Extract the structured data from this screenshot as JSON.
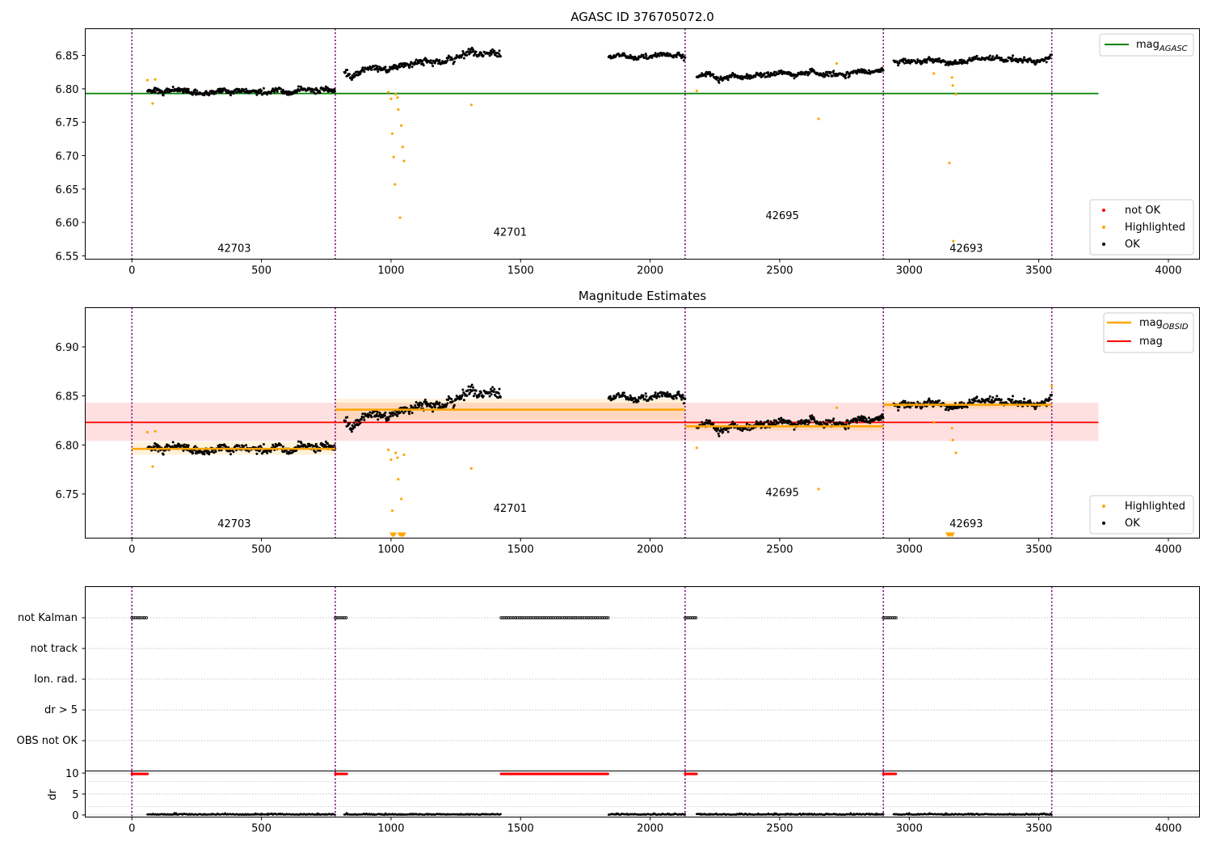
{
  "colors": {
    "ok": "#000000",
    "highlighted": "#ffa500",
    "not_ok": "#ff0000",
    "agasc_line": "#008000",
    "mag_line": "#ff0000",
    "obsid_line": "#ffa500",
    "boundary": "#800080",
    "grid": "#b0b0b0"
  },
  "chart_data": [
    {
      "type": "scatter",
      "title": "AGASC ID 376705072.0",
      "xlim": [
        -180,
        4120
      ],
      "ylim": [
        6.545,
        6.89
      ],
      "xticks": [
        "0",
        "500",
        "1000",
        "1500",
        "2000",
        "2500",
        "3000",
        "3500",
        "4000"
      ],
      "yticks": [
        "6.55",
        "6.60",
        "6.65",
        "6.70",
        "6.75",
        "6.80",
        "6.85"
      ],
      "boundaries": [
        0,
        785,
        2135,
        2900,
        3550
      ],
      "segments": [
        {
          "start": 60,
          "end": 785,
          "level": 6.797,
          "noise": 0.006
        },
        {
          "start": 820,
          "end": 1425,
          "level": 6.822,
          "slope": 0.036,
          "noise": 0.008
        },
        {
          "start": 1840,
          "end": 2135,
          "level": 6.849,
          "noise": 0.005
        },
        {
          "start": 2180,
          "end": 2900,
          "level": 6.816,
          "slope": 0.012,
          "noise": 0.006
        },
        {
          "start": 2940,
          "end": 3550,
          "level": 6.84,
          "slope": 0.005,
          "noise": 0.006
        }
      ],
      "obsid_labels": [
        {
          "text": "42703",
          "x": 395,
          "y": 6.556
        },
        {
          "text": "42701",
          "x": 1460,
          "y": 6.58
        },
        {
          "text": "42695",
          "x": 2510,
          "y": 6.605
        },
        {
          "text": "42693",
          "x": 3220,
          "y": 6.556
        }
      ],
      "agasc_mag": {
        "value": 6.793,
        "xmin": -180,
        "xmax": 3730
      },
      "highlighted": [
        [
          60,
          6.813
        ],
        [
          80,
          6.778
        ],
        [
          90,
          6.814
        ],
        [
          990,
          6.795
        ],
        [
          1000,
          6.785
        ],
        [
          1005,
          6.733
        ],
        [
          1010,
          6.698
        ],
        [
          1015,
          6.657
        ],
        [
          1018,
          6.792
        ],
        [
          1025,
          6.787
        ],
        [
          1028,
          6.769
        ],
        [
          1035,
          6.607
        ],
        [
          1040,
          6.745
        ],
        [
          1045,
          6.713
        ],
        [
          1050,
          6.692
        ],
        [
          1310,
          6.776
        ],
        [
          2180,
          6.797
        ],
        [
          2650,
          6.755
        ],
        [
          2720,
          6.838
        ],
        [
          3095,
          6.823
        ],
        [
          3155,
          6.689
        ],
        [
          3165,
          6.817
        ],
        [
          3168,
          6.805
        ],
        [
          3170,
          6.572
        ],
        [
          3180,
          6.792
        ]
      ],
      "legend_top": [
        {
          "label": "mag",
          "sub": "AGASC",
          "color": "#008000"
        }
      ],
      "legend_bottom": [
        {
          "label": "not OK",
          "color": "#ff0000"
        },
        {
          "label": "Highlighted",
          "color": "#ffa500"
        },
        {
          "label": "OK",
          "color": "#000000"
        }
      ]
    },
    {
      "type": "scatter",
      "title": "Magnitude Estimates",
      "xlim": [
        -180,
        4120
      ],
      "ylim": [
        6.705,
        6.94
      ],
      "xticks": [
        "0",
        "500",
        "1000",
        "1500",
        "2000",
        "2500",
        "3000",
        "3500",
        "4000"
      ],
      "yticks": [
        "6.75",
        "6.80",
        "6.85",
        "6.90"
      ],
      "boundaries": [
        0,
        785,
        2135,
        2900,
        3550
      ],
      "segments": [
        {
          "start": 60,
          "end": 785,
          "level": 6.797,
          "noise": 0.006
        },
        {
          "start": 820,
          "end": 1425,
          "level": 6.822,
          "slope": 0.036,
          "noise": 0.008
        },
        {
          "start": 1840,
          "end": 2135,
          "level": 6.849,
          "noise": 0.005
        },
        {
          "start": 2180,
          "end": 2900,
          "level": 6.816,
          "slope": 0.012,
          "noise": 0.006
        },
        {
          "start": 2940,
          "end": 3550,
          "level": 6.84,
          "slope": 0.005,
          "noise": 0.006
        }
      ],
      "obsid_labels": [
        {
          "text": "42703",
          "x": 395,
          "y": 6.716
        },
        {
          "text": "42701",
          "x": 1460,
          "y": 6.732
        },
        {
          "text": "42695",
          "x": 2510,
          "y": 6.748
        },
        {
          "text": "42693",
          "x": 3220,
          "y": 6.716
        }
      ],
      "mag": {
        "value": 6.823,
        "band": [
          6.804,
          6.843
        ],
        "xmin": -180,
        "xmax": 3730
      },
      "mag_obsid": [
        {
          "x0": 0,
          "x1": 785,
          "value": 6.796,
          "band": [
            6.79,
            6.803
          ]
        },
        {
          "x0": 785,
          "x1": 2135,
          "value": 6.836,
          "band": [
            6.826,
            6.847
          ]
        },
        {
          "x0": 2135,
          "x1": 2900,
          "value": 6.819,
          "band": [
            6.815,
            6.824
          ]
        },
        {
          "x0": 2900,
          "x1": 3550,
          "value": 6.841,
          "band": [
            6.837,
            6.845
          ]
        }
      ],
      "highlighted": [
        [
          60,
          6.813
        ],
        [
          80,
          6.778
        ],
        [
          90,
          6.814
        ],
        [
          990,
          6.795
        ],
        [
          1000,
          6.785
        ],
        [
          1005,
          6.733
        ],
        [
          1018,
          6.792
        ],
        [
          1025,
          6.787
        ],
        [
          1028,
          6.765
        ],
        [
          1040,
          6.745
        ],
        [
          1050,
          6.79
        ],
        [
          1310,
          6.776
        ],
        [
          2180,
          6.797
        ],
        [
          2650,
          6.755
        ],
        [
          2720,
          6.838
        ],
        [
          3095,
          6.823
        ],
        [
          3165,
          6.817
        ],
        [
          3168,
          6.805
        ],
        [
          3180,
          6.792
        ],
        [
          3550,
          6.86
        ]
      ],
      "lower_limit_markers": [
        1005,
        1012,
        1035,
        1042,
        1048,
        3150,
        3158,
        3166
      ],
      "legend_top": [
        {
          "label": "mag",
          "sub": "OBSID",
          "color": "#ffa500"
        },
        {
          "label": "mag",
          "sub": "",
          "color": "#ff0000"
        }
      ],
      "legend_bottom": [
        {
          "label": "Highlighted",
          "color": "#ffa500"
        },
        {
          "label": "OK",
          "color": "#000000"
        }
      ]
    },
    {
      "type": "scatter",
      "title": "",
      "xlim": [
        -180,
        4120
      ],
      "flags": [
        "not Kalman",
        "not track",
        "Ion. rad.",
        "dr > 5",
        "OBS not OK"
      ],
      "boundaries": [
        0,
        785,
        2135,
        2900,
        3550
      ],
      "flag_intervals": [
        [
          0,
          60
        ],
        [
          785,
          830
        ],
        [
          1425,
          1840
        ],
        [
          2135,
          2180
        ],
        [
          2900,
          2950
        ]
      ],
      "dr_ylim": [
        -0.5,
        10.5
      ],
      "dr_yticks": [
        "0",
        "5",
        "10"
      ],
      "dr_ylabel": "dr",
      "dr_high": 9.8,
      "xticks": [
        "0",
        "500",
        "1000",
        "1500",
        "2000",
        "2500",
        "3000",
        "3500",
        "4000"
      ]
    }
  ]
}
